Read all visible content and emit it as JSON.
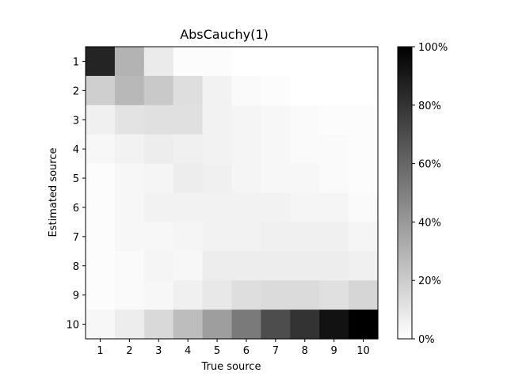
{
  "chart_data": {
    "type": "heatmap",
    "title": "AbsCauchy(1)",
    "xlabel": "True source",
    "ylabel": "Estimated source",
    "x_categories": [
      "1",
      "2",
      "3",
      "4",
      "5",
      "6",
      "7",
      "8",
      "9",
      "10"
    ],
    "y_categories": [
      "1",
      "2",
      "3",
      "4",
      "5",
      "6",
      "7",
      "8",
      "9",
      "10"
    ],
    "value_unit": "%",
    "value_range": [
      0,
      100
    ],
    "colormap": "gray_r",
    "colorbar_ticks": [
      "0%",
      "20%",
      "40%",
      "60%",
      "80%",
      "100%"
    ],
    "colorbar_tick_values": [
      0,
      20,
      40,
      60,
      80,
      100
    ],
    "values": [
      [
        86,
        30,
        8,
        1,
        1,
        0,
        0,
        0,
        0,
        0
      ],
      [
        19,
        28,
        21,
        13,
        5,
        2,
        1,
        0,
        0,
        0
      ],
      [
        6,
        11,
        12,
        12,
        5,
        4,
        3,
        2,
        1,
        1
      ],
      [
        3,
        5,
        7,
        6,
        5,
        4,
        3,
        2,
        2,
        1
      ],
      [
        1,
        3,
        4,
        7,
        6,
        4,
        3,
        3,
        2,
        1
      ],
      [
        1,
        3,
        5,
        5,
        5,
        5,
        5,
        4,
        4,
        2
      ],
      [
        1,
        3,
        3,
        4,
        5,
        5,
        6,
        6,
        6,
        4
      ],
      [
        1,
        2,
        4,
        3,
        7,
        7,
        7,
        7,
        7,
        6
      ],
      [
        1,
        2,
        3,
        6,
        9,
        13,
        14,
        14,
        12,
        16
      ],
      [
        3,
        7,
        15,
        26,
        38,
        52,
        70,
        80,
        93,
        100
      ]
    ]
  }
}
